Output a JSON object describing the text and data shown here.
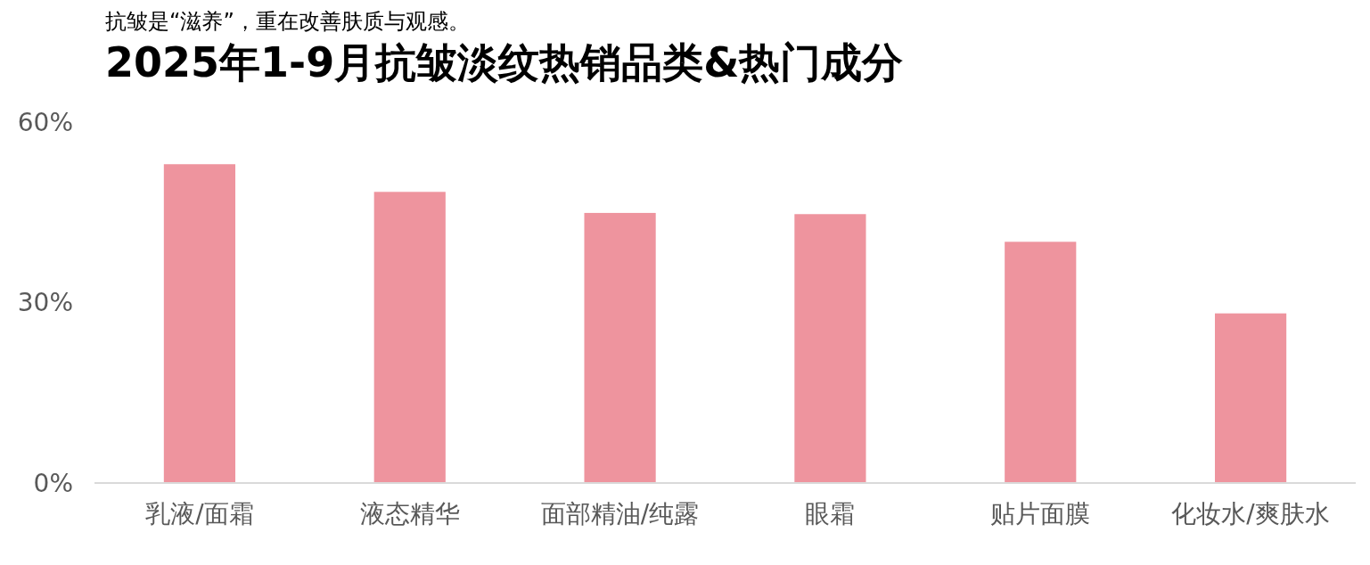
{
  "chart_data": {
    "type": "bar",
    "subtitle": "抗皱是“滋养”，重在改善肤质与观感。",
    "title": "2025年1-9月抗皱淡纹热销品类&热门成分",
    "categories": [
      "乳液/面霜",
      "液态精华",
      "面部精油/纯露",
      "眼霜",
      "贴片面膜",
      "化妆水/爽肤水"
    ],
    "values": [
      53.0,
      48.4,
      44.9,
      44.7,
      40.1,
      28.2
    ],
    "color": "#ee949e",
    "ylim": [
      0,
      60
    ],
    "yticks": [
      {
        "value": 0,
        "label": "0%"
      },
      {
        "value": 30,
        "label": "30%"
      },
      {
        "value": 60,
        "label": "60%"
      }
    ],
    "grid": false
  }
}
